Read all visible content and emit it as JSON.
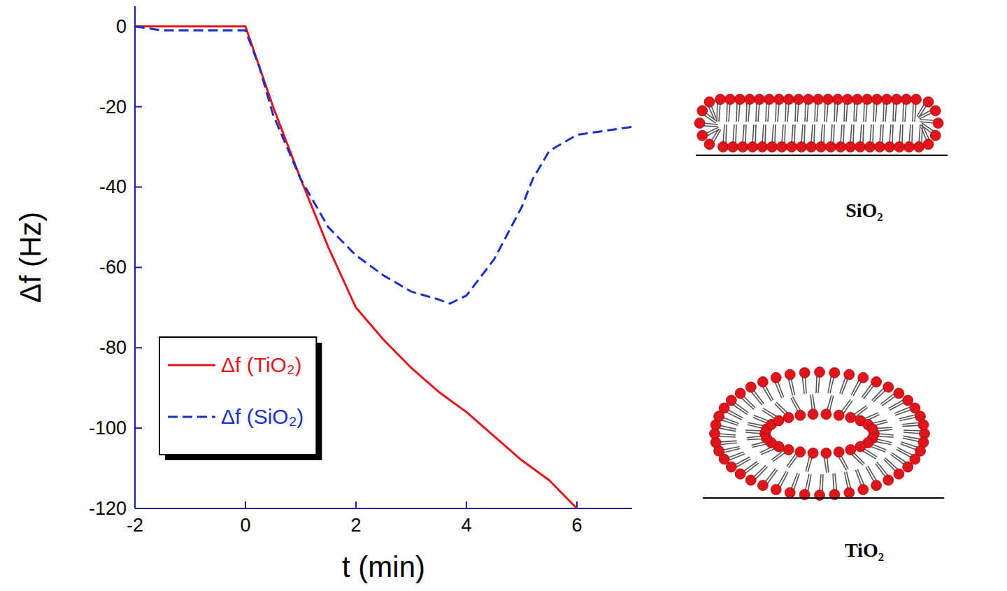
{
  "chart_data": {
    "type": "line",
    "x_label": "t (min)",
    "y_label": "Δf (Hz)",
    "xlim": [
      -2,
      7
    ],
    "xticks": [
      -2,
      0,
      2,
      4,
      6
    ],
    "ylim": [
      -120,
      5
    ],
    "yticks": [
      0,
      -20,
      -40,
      -60,
      -80,
      -100,
      -120
    ],
    "grid": false,
    "legend": "lower left",
    "series": [
      {
        "name": "Δf (TiO₂)",
        "color": "#e3141b",
        "line_style": "solid",
        "x": [
          -2,
          0,
          0.5,
          1,
          1.5,
          2,
          2.5,
          3,
          3.5,
          4,
          4.5,
          5,
          5.5,
          6
        ],
        "values": [
          0,
          0,
          -20,
          -38,
          -55,
          -70,
          -78,
          -85,
          -91,
          -96,
          -102,
          -108,
          -113,
          -120
        ]
      },
      {
        "name": "Δf (SiO₂)",
        "color": "#1c2fc4",
        "line_style": "dashed",
        "x": [
          -2,
          -1.5,
          0,
          0.25,
          0.5,
          1,
          1.5,
          2,
          2.5,
          3,
          3.5,
          3.7,
          4,
          4.5,
          5,
          5.2,
          5.5,
          6,
          7
        ],
        "values": [
          0,
          -1,
          -1,
          -10,
          -22,
          -38,
          -50,
          -57,
          -62,
          -66,
          -68,
          -69,
          -67,
          -58,
          -45,
          -38,
          -31,
          -27,
          -25
        ]
      }
    ],
    "annotations": [
      "SiO₂",
      "TiO₂"
    ]
  }
}
